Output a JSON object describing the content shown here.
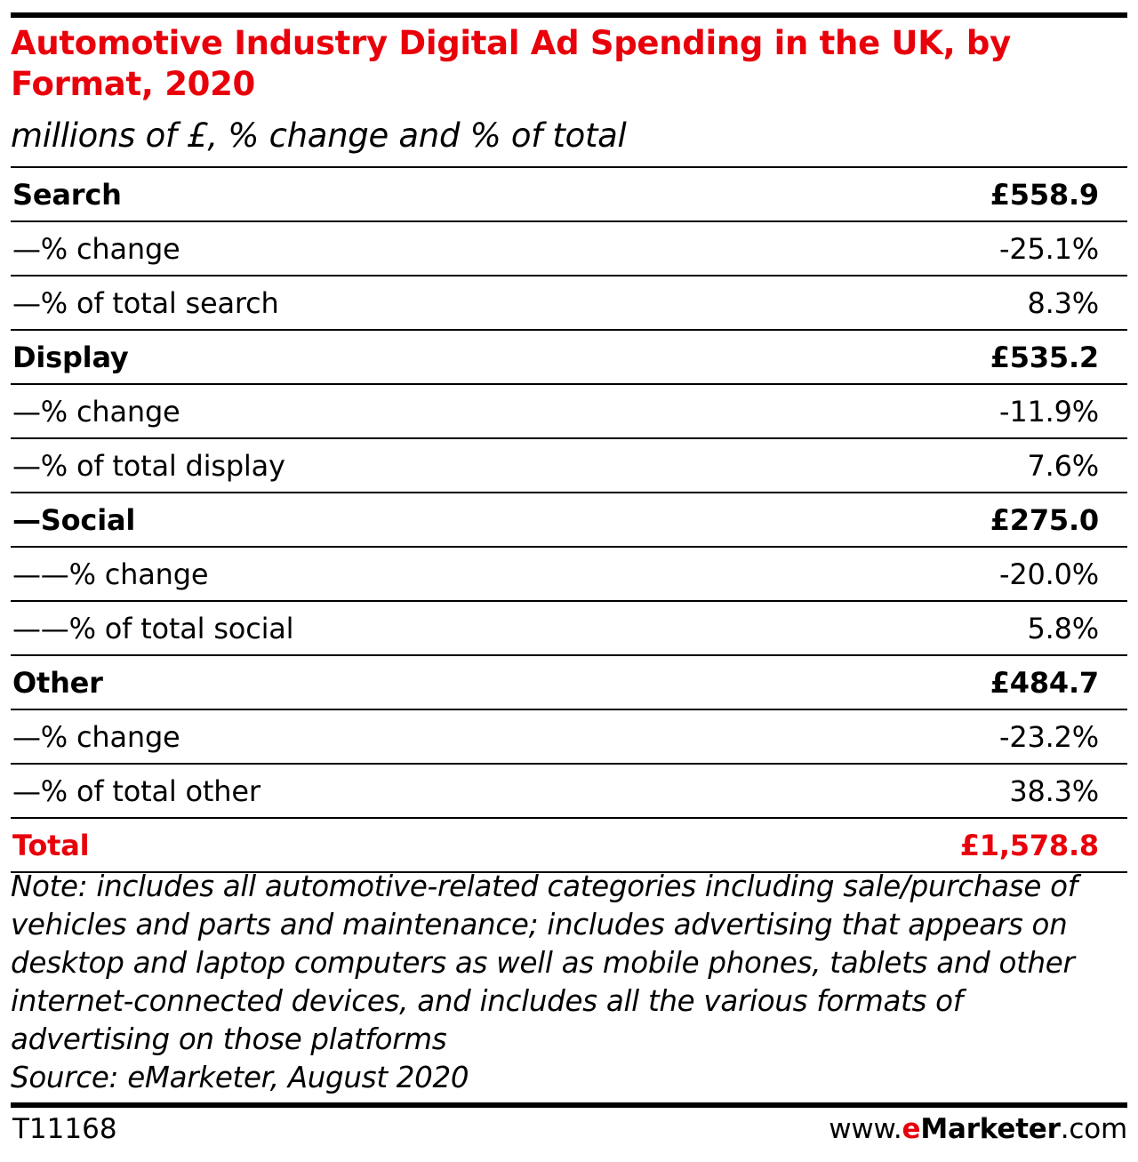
{
  "colors": {
    "title": "#e8000b",
    "total": "#e8000b",
    "text": "#000000",
    "brand_e": "#e8000b"
  },
  "header": {
    "title": "Automotive Industry Digital Ad Spending in the UK, by Format, 2020",
    "subtitle": "millions of £, % change and % of total"
  },
  "chart_data": {
    "type": "table",
    "title": "Automotive Industry Digital Ad Spending in the UK, by Format, 2020",
    "subtitle": "millions of £, % change and % of total",
    "rows": [
      {
        "label": "Search",
        "value": "£558.9",
        "style": "header"
      },
      {
        "label": "—% change",
        "value": "-25.1%",
        "style": "sub"
      },
      {
        "label": "—% of total search",
        "value": "8.3%",
        "style": "sub"
      },
      {
        "label": "Display",
        "value": "£535.2",
        "style": "header"
      },
      {
        "label": "—% change",
        "value": "-11.9%",
        "style": "sub"
      },
      {
        "label": "—% of total display",
        "value": "7.6%",
        "style": "sub"
      },
      {
        "label": "—Social",
        "value": "£275.0",
        "style": "header"
      },
      {
        "label": "——% change",
        "value": "-20.0%",
        "style": "sub"
      },
      {
        "label": "——% of total social",
        "value": "5.8%",
        "style": "sub"
      },
      {
        "label": "Other",
        "value": "£484.7",
        "style": "header"
      },
      {
        "label": "—% change",
        "value": "-23.2%",
        "style": "sub"
      },
      {
        "label": "—% of total other",
        "value": "38.3%",
        "style": "sub"
      },
      {
        "label": "Total",
        "value": "£1,578.8",
        "style": "total"
      }
    ]
  },
  "footer": {
    "note": "Note: includes all automotive-related categories including sale/purchase of vehicles and parts and maintenance; includes advertising that appears on desktop and laptop computers as well as mobile phones, tablets and other internet-connected devices, and includes all the various formats of advertising on those platforms",
    "source": "Source: eMarketer, August 2020",
    "table_id": "T11168",
    "brand_prefix": "www.",
    "brand_e": "e",
    "brand_name": "Marketer",
    "brand_suffix": ".com"
  }
}
